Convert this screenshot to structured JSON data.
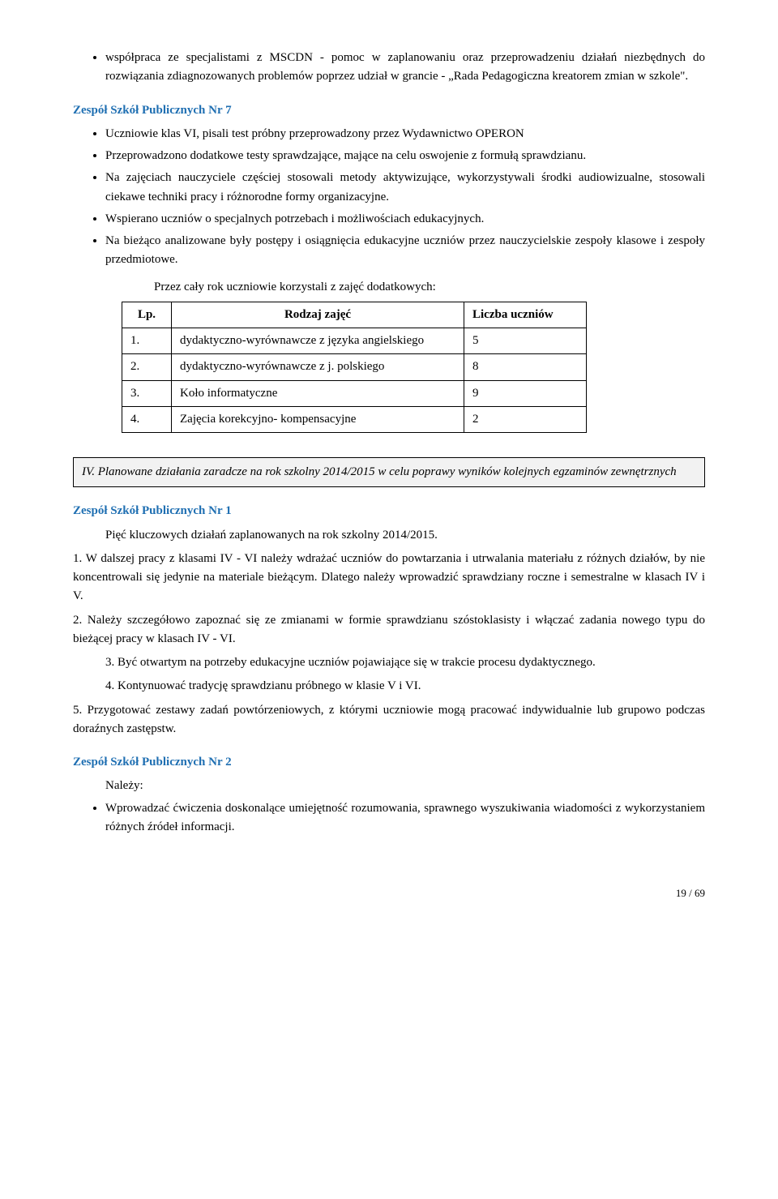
{
  "top_bullets": [
    "współpraca ze specjalistami z MSCDN - pomoc w zaplanowaniu oraz przeprowadzeniu działań niezbędnych do rozwiązania zdiagnozowanych problemów poprzez udział w grancie - „Rada Pedagogiczna kreatorem zmian w szkole\"."
  ],
  "school7": {
    "title": "Zespół Szkół Publicznych Nr 7",
    "bullets": [
      "Uczniowie klas VI, pisali test próbny przeprowadzony przez Wydawnictwo OPERON",
      "Przeprowadzono dodatkowe testy sprawdzające, mające na celu oswojenie z formułą sprawdzianu.",
      "Na zajęciach nauczyciele częściej stosowali metody aktywizujące, wykorzystywali środki audiowizualne, stosowali ciekawe techniki pracy i różnorodne formy organizacyjne.",
      "Wspierano uczniów o specjalnych potrzebach i możliwościach edukacyjnych.",
      "Na bieżąco analizowane były postępy i osiągnięcia edukacyjne uczniów przez  nauczycielskie zespoły klasowe i zespoły przedmiotowe."
    ],
    "table_caption": "Przez cały rok uczniowie korzystali z zajęć dodatkowych:",
    "table": {
      "headers": {
        "lp": "Lp.",
        "rodzaj": "Rodzaj zajęć",
        "liczba": "Liczba uczniów"
      },
      "rows": [
        {
          "lp": "1.",
          "rodzaj": "dydaktyczno-wyrównawcze  z języka angielskiego",
          "liczba": "5"
        },
        {
          "lp": "2.",
          "rodzaj": "dydaktyczno-wyrównawcze  z j. polskiego",
          "liczba": "8"
        },
        {
          "lp": "3.",
          "rodzaj": "Koło informatyczne",
          "liczba": "9"
        },
        {
          "lp": "4.",
          "rodzaj": "Zajęcia korekcyjno- kompensacyjne",
          "liczba": "2"
        }
      ]
    }
  },
  "section_iv": {
    "heading": "IV. Planowane działania zaradcze na rok szkolny 2014/2015 w celu poprawy wyników kolejnych egzaminów zewnętrznych"
  },
  "school1": {
    "title": "Zespół Szkół Publicznych Nr 1",
    "intro": "Pięć kluczowych działań zaplanowanych na rok szkolny  2014/2015.",
    "items": [
      "1. W dalszej pracy z klasami IV - VI należy wdrażać uczniów do powtarzania i utrwalania materiału z różnych działów, by nie koncentrowali się jedynie na materiale bieżącym. Dlatego należy wprowadzić sprawdziany roczne i semestralne w klasach IV i V.",
      "2. Należy szczegółowo zapoznać się ze zmianami w formie sprawdzianu szóstoklasisty i włączać zadania nowego typu do bieżącej pracy w klasach IV - VI.",
      "3. Być otwartym na potrzeby edukacyjne uczniów pojawiające się w trakcie procesu dydaktycznego.",
      "4. Kontynuować tradycję sprawdzianu próbnego w klasie V i VI.",
      "5. Przygotować zestawy zadań powtórzeniowych, z którymi uczniowie mogą pracować indywidualnie lub grupowo podczas doraźnych zastępstw."
    ]
  },
  "school2": {
    "title": "Zespół Szkół Publicznych Nr 2",
    "lead": "Należy:",
    "bullets": [
      "Wprowadzać ćwiczenia doskonalące umiejętność rozumowania, sprawnego wyszukiwania wiadomości z wykorzystaniem różnych źródeł informacji."
    ]
  },
  "footer": "19 / 69"
}
